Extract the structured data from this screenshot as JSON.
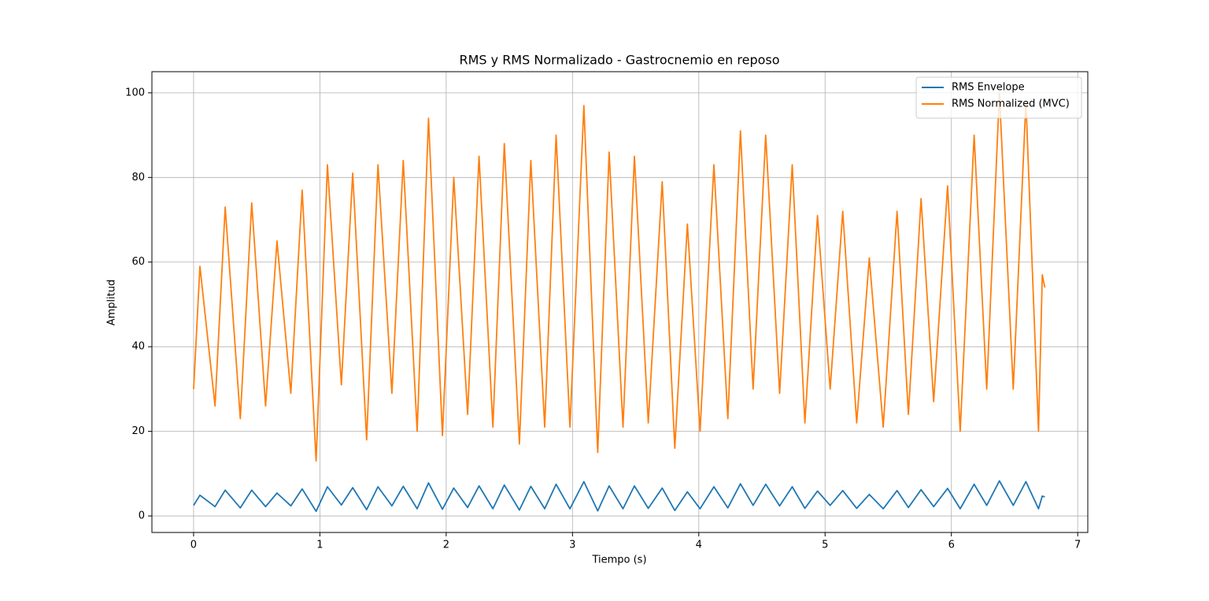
{
  "chart_data": {
    "type": "line",
    "title": "RMS y RMS Normalizado - Gastrocnemio en reposo",
    "xlabel": "Tiempo (s)",
    "ylabel": "Amplitud",
    "x": [
      0,
      0.05,
      0.17,
      0.25,
      0.37,
      0.46,
      0.57,
      0.66,
      0.77,
      0.86,
      0.97,
      1.06,
      1.17,
      1.26,
      1.37,
      1.46,
      1.57,
      1.66,
      1.77,
      1.86,
      1.97,
      2.06,
      2.17,
      2.26,
      2.37,
      2.46,
      2.58,
      2.67,
      2.78,
      2.87,
      2.98,
      3.09,
      3.2,
      3.29,
      3.4,
      3.49,
      3.6,
      3.71,
      3.81,
      3.91,
      4.01,
      4.12,
      4.23,
      4.33,
      4.43,
      4.53,
      4.64,
      4.74,
      4.84,
      4.94,
      5.04,
      5.14,
      5.25,
      5.35,
      5.46,
      5.57,
      5.66,
      5.76,
      5.86,
      5.97,
      6.07,
      6.18,
      6.28,
      6.38,
      6.49,
      6.59,
      6.69,
      6.72,
      6.74
    ],
    "series": [
      {
        "name": "RMS Envelope",
        "color": "#1f77b4",
        "values": [
          2.5,
          4.9,
          2.2,
          6.1,
          1.9,
          6.1,
          2.2,
          5.4,
          2.4,
          6.4,
          1.1,
          6.9,
          2.6,
          6.7,
          1.5,
          6.9,
          2.4,
          7.0,
          1.7,
          7.8,
          1.6,
          6.6,
          2.0,
          7.1,
          1.7,
          7.3,
          1.4,
          7.0,
          1.7,
          7.5,
          1.7,
          8.1,
          1.2,
          7.1,
          1.7,
          7.1,
          1.8,
          6.6,
          1.3,
          5.7,
          1.7,
          6.9,
          1.9,
          7.6,
          2.5,
          7.5,
          2.4,
          6.9,
          1.8,
          5.9,
          2.5,
          6.0,
          1.8,
          5.1,
          1.7,
          6.0,
          2.0,
          6.2,
          2.2,
          6.5,
          1.7,
          7.5,
          2.5,
          8.3,
          2.5,
          8.1,
          1.7,
          4.7,
          4.5
        ]
      },
      {
        "name": "RMS Normalized (MVC)",
        "color": "#ff7f0e",
        "values": [
          30,
          59,
          26,
          73,
          23,
          74,
          26,
          65,
          29,
          77,
          13,
          83,
          31,
          81,
          18,
          83,
          29,
          84,
          20,
          94,
          19,
          80,
          24,
          85,
          21,
          88,
          17,
          84,
          21,
          90,
          21,
          97,
          15,
          86,
          21,
          85,
          22,
          79,
          16,
          69,
          20,
          83,
          23,
          91,
          30,
          90,
          29,
          83,
          22,
          71,
          30,
          72,
          22,
          61,
          21,
          72,
          24,
          75,
          27,
          78,
          20,
          90,
          30,
          100,
          30,
          98,
          20,
          57,
          54
        ]
      }
    ],
    "xlim": [
      -0.33,
      7.08
    ],
    "ylim": [
      -3.9,
      105
    ],
    "xticks": [
      0,
      1,
      2,
      3,
      4,
      5,
      6,
      7
    ],
    "yticks": [
      0,
      20,
      40,
      60,
      80,
      100
    ],
    "grid": true,
    "legend": "upper right"
  }
}
